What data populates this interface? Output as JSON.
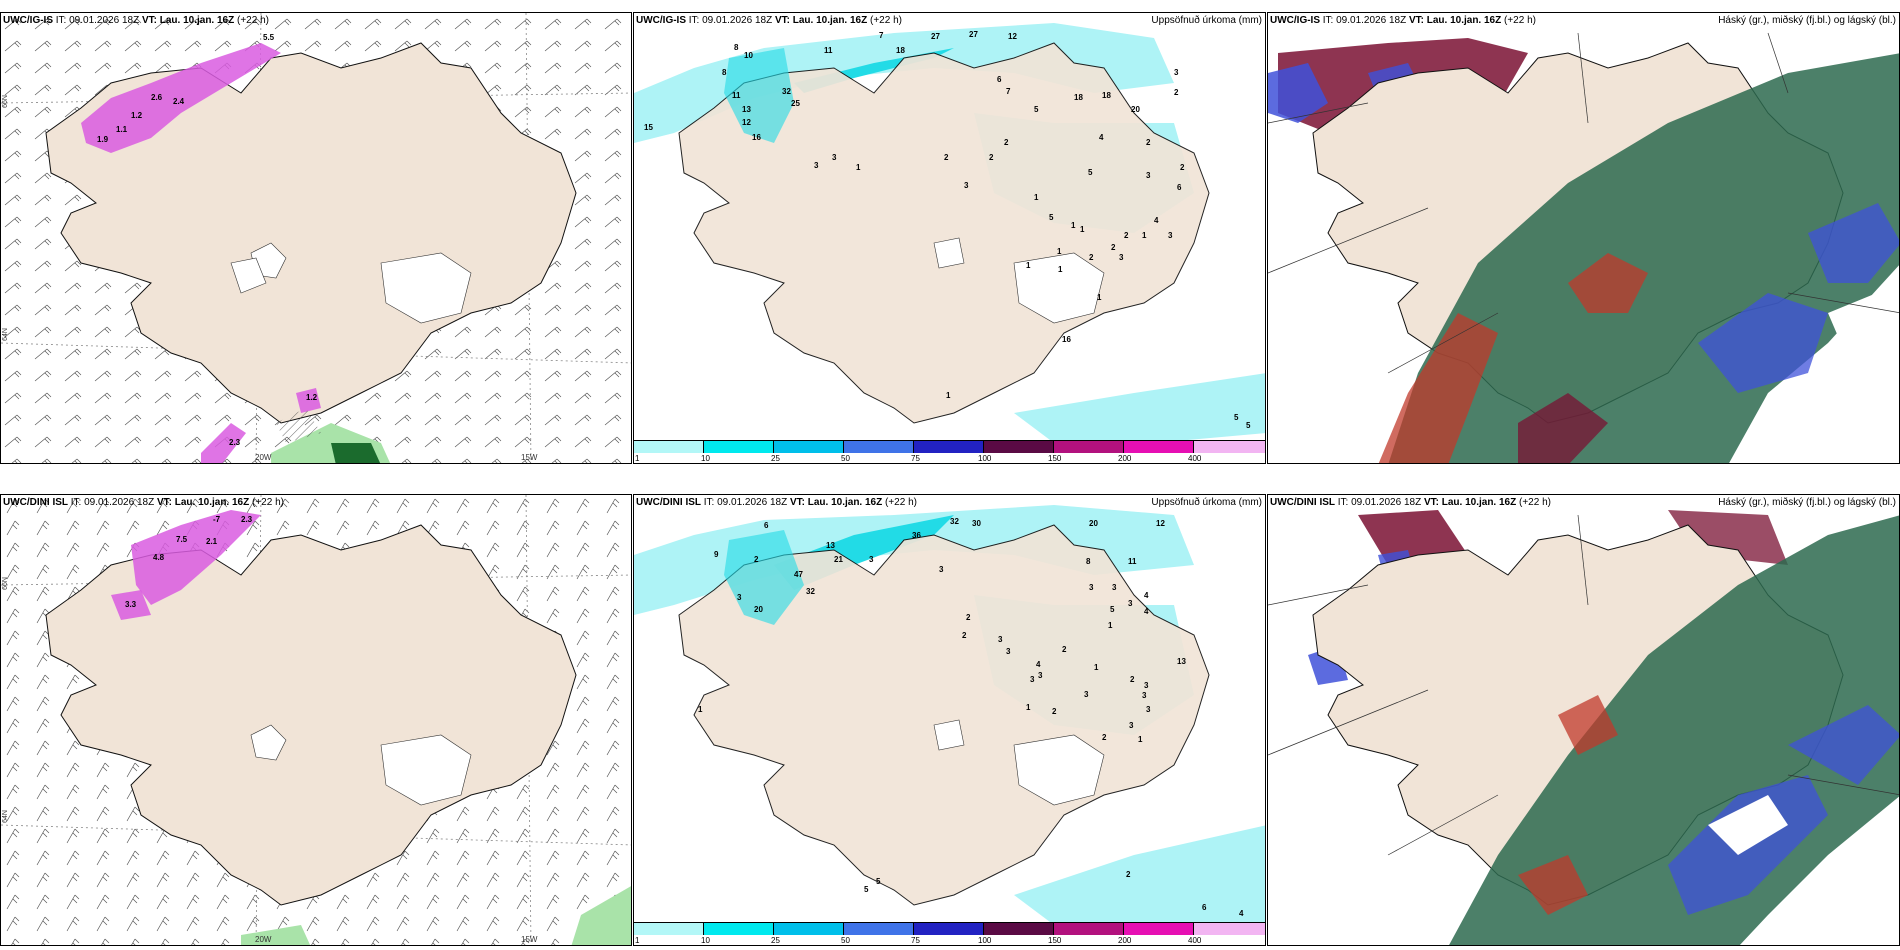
{
  "colors": {
    "land": "#f1e4d7",
    "snow": "#ffffff",
    "sea": "#ffffff",
    "precip_light": "#aef3f6",
    "precip_mid": "#22dbe6",
    "wind_purple": "#d95ce0",
    "green_hatch": "#a9e3a9",
    "cloud_green": "#2d6a4f",
    "cloud_red": "#c0392b",
    "cloud_dark_red": "#7a1133",
    "cloud_blue": "#3f51d9"
  },
  "rows": [
    {
      "id": "igis",
      "wind": {
        "title_model": "UWC/IG-IS",
        "it_text": "IT: 09.01.2026 18Z",
        "vt_label": "VT: Lau. 10.jan. 16Z",
        "lead": "(+22 h)",
        "lon_labels": [
          "20W",
          "15W"
        ],
        "lat_labels": [
          "66N",
          "64N",
          "65N",
          "63N"
        ],
        "values": [
          "5.5",
          "2.6",
          "2.4",
          "1.2",
          "1.1",
          "1.2",
          "1.9",
          "2.3"
        ]
      },
      "precip": {
        "title_model": "UWC/IG-IS",
        "it_text": "IT: 09.01.2026 18Z",
        "vt_label": "VT: Lau. 10.jan. 16Z",
        "lead": "(+22 h)",
        "right_title": "Uppsöfnuð úrkoma (mm)",
        "labels": [
          "8",
          "10",
          "11",
          "7",
          "18",
          "27",
          "27",
          "12",
          "15",
          "8",
          "32",
          "25",
          "11",
          "13",
          "16",
          "12",
          "1",
          "3",
          "6",
          "7",
          "5",
          "18",
          "18",
          "20",
          "3",
          "2",
          "4",
          "2",
          "2",
          "3",
          "6",
          "5",
          "2",
          "3",
          "2",
          "1",
          "1",
          "2",
          "1",
          "1",
          "2",
          "5",
          "4",
          "1",
          "3",
          "1",
          "1",
          "2",
          "3",
          "16",
          "1",
          "5",
          "5",
          "1",
          "3",
          "2"
        ],
        "colorbar": [
          "1",
          "10",
          "25",
          "50",
          "75",
          "100",
          "150",
          "200",
          "400"
        ]
      },
      "cloud": {
        "title_model": "UWC/IG-IS",
        "it_text": "IT: 09.01.2026 18Z",
        "vt_label": "VT: Lau. 10.jan. 16Z",
        "lead": "(+22 h)",
        "right_title": "Háský (gr.), miðský (fj.bl.) og lágský (bl.)"
      }
    },
    {
      "id": "dini",
      "wind": {
        "title_model": "UWC/DINI ISL",
        "it_text": "IT: 09.01.2026 18Z",
        "vt_label": "VT: Lau. 10.jan. 16Z",
        "lead": "(+22 h)",
        "lon_labels": [
          "20W",
          "15W"
        ],
        "lat_labels": [
          "66N",
          "64N",
          "65N",
          "63N"
        ],
        "values": [
          "-7",
          "2.3",
          "7.5",
          "2.1",
          "4.8",
          "3.3"
        ]
      },
      "precip": {
        "title_model": "UWC/DINI ISL",
        "it_text": "IT: 09.01.2026 18Z",
        "vt_label": "VT: Lau. 10.jan. 16Z",
        "lead": "(+22 h)",
        "right_title": "Uppsöfnuð úrkoma (mm)",
        "labels": [
          "6",
          "9",
          "2",
          "20",
          "32",
          "13",
          "21",
          "47",
          "36",
          "32",
          "30",
          "3",
          "20",
          "12",
          "8",
          "11",
          "3",
          "3",
          "4",
          "3",
          "5",
          "4",
          "1",
          "2",
          "2",
          "3",
          "3",
          "2",
          "4",
          "1",
          "2",
          "3",
          "3",
          "3",
          "3",
          "1",
          "2",
          "3",
          "13",
          "3",
          "2",
          "3",
          "1",
          "5",
          "5",
          "2",
          "6",
          "4",
          "1",
          "3",
          "3"
        ],
        "colorbar": [
          "1",
          "10",
          "25",
          "50",
          "75",
          "100",
          "150",
          "200",
          "400"
        ]
      },
      "cloud": {
        "title_model": "UWC/DINI ISL",
        "it_text": "IT: 09.01.2026 18Z",
        "vt_label": "VT: Lau. 10.jan. 16Z",
        "lead": "(+22 h)",
        "right_title": "Háský (gr.), miðský (fj.bl.) og lágský (bl.)"
      }
    }
  ],
  "colorbar_colors": [
    "#b3f7f7",
    "#00e9ee",
    "#00bfea",
    "#3f73e8",
    "#2222c2",
    "#5a0a44",
    "#b2117e",
    "#e60fb3",
    "#f2b5f2"
  ]
}
